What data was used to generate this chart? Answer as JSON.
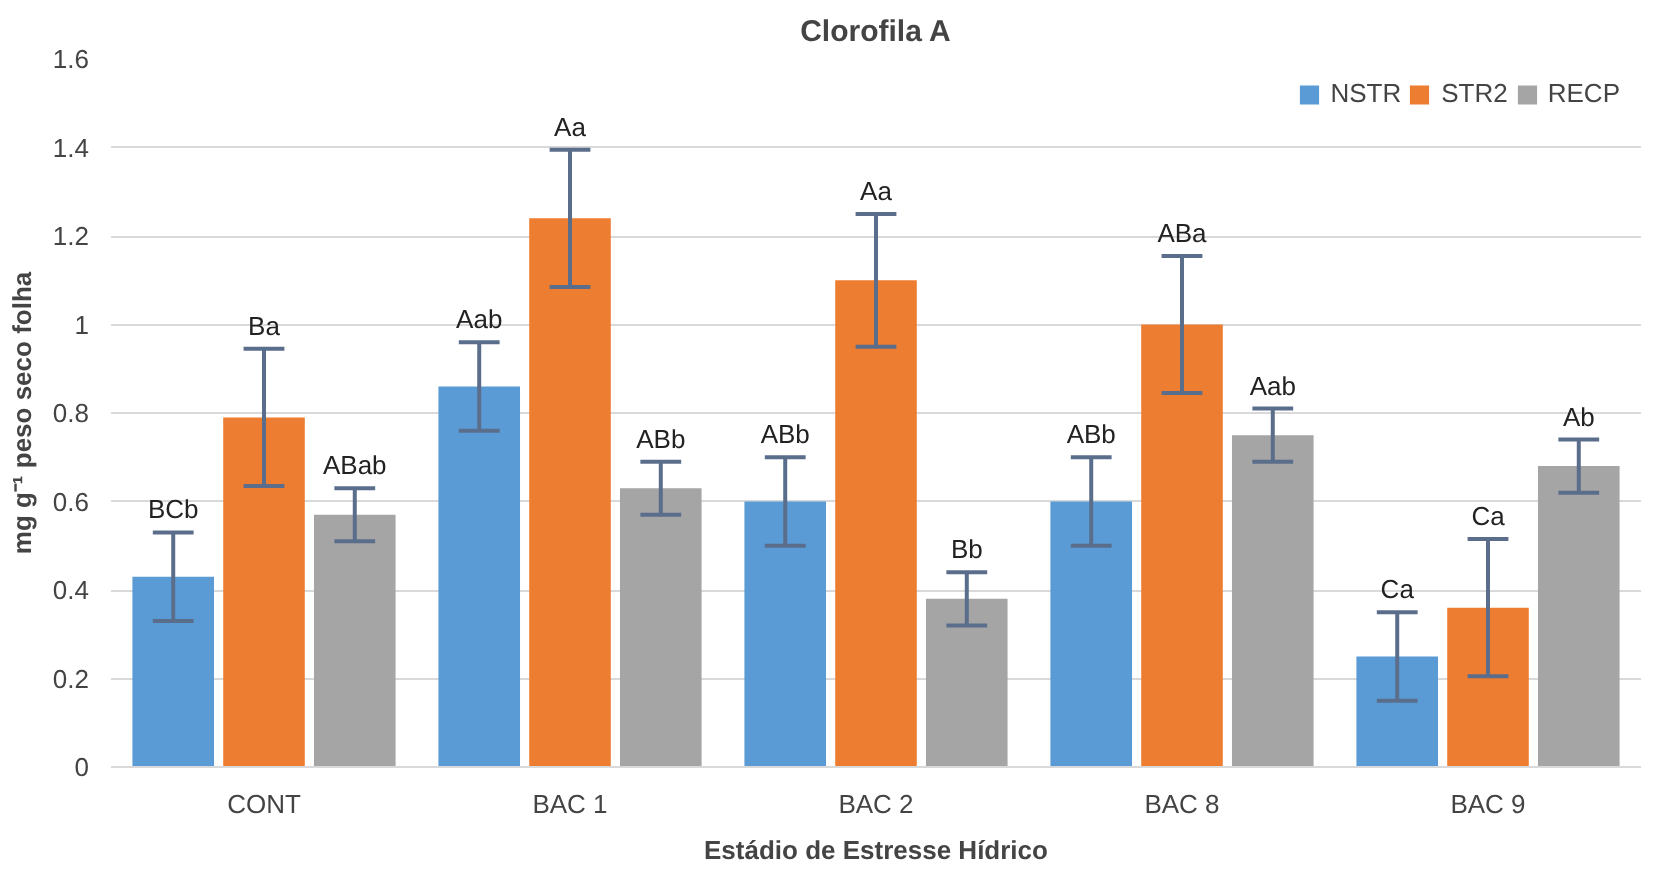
{
  "chart_data": {
    "type": "bar",
    "title": "Clorofila A",
    "xlabel": "Estádio de Estresse Hídrico",
    "ylabel": "mg g⁻¹ peso seco folha",
    "categories": [
      "CONT",
      "BAC 1",
      "BAC 2",
      "BAC 8",
      "BAC 9"
    ],
    "series": [
      {
        "name": "NSTR",
        "color": "#5b9bd5",
        "values": [
          0.43,
          0.86,
          0.6,
          0.6,
          0.25
        ],
        "errors": [
          0.1,
          0.1,
          0.1,
          0.1,
          0.1
        ],
        "value_labels": [
          "BCb",
          "Aab",
          "ABb",
          "ABb",
          "Ca"
        ]
      },
      {
        "name": "STR2",
        "color": "#ed7d31",
        "values": [
          0.79,
          1.24,
          1.1,
          1.0,
          0.36
        ],
        "errors": [
          0.155,
          0.155,
          0.15,
          0.155,
          0.155
        ],
        "value_labels": [
          "Ba",
          "Aa",
          "Aa",
          "ABa",
          "Ca"
        ]
      },
      {
        "name": "RECP",
        "color": "#a5a5a5",
        "values": [
          0.57,
          0.63,
          0.38,
          0.75,
          0.68
        ],
        "errors": [
          0.06,
          0.06,
          0.06,
          0.06,
          0.06
        ],
        "value_labels": [
          "ABab",
          "ABb",
          "Bb",
          "Aab",
          "Ab"
        ]
      }
    ],
    "ylim": [
      0,
      1.6
    ],
    "yticks": [
      0,
      {
        "value": 0.2,
        "label": "0.2"
      },
      {
        "value": 0.4,
        "label": "0.4"
      },
      {
        "value": 0.6,
        "label": "0.6"
      },
      {
        "value": 0.8,
        "label": "0.8"
      },
      1,
      {
        "value": 1.2,
        "label": "1.2"
      },
      {
        "value": 1.4,
        "label": "1.4"
      },
      {
        "value": 1.6,
        "label": "1.6"
      }
    ],
    "grid": "y",
    "legend": "top right"
  }
}
